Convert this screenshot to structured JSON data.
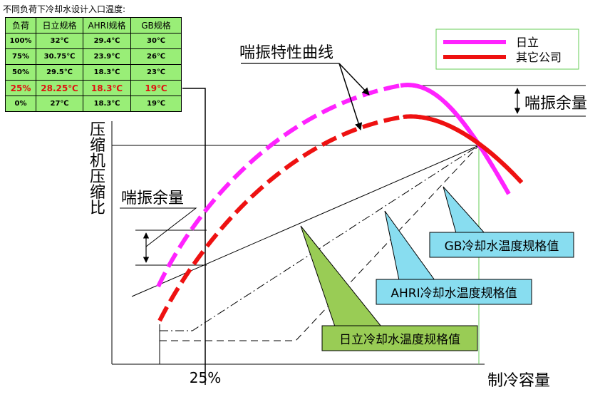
{
  "table": {
    "caption": "不同负荷下冷却水设计入口温度:",
    "headers": [
      "负荷",
      "日立规格",
      "AHRI规格",
      "GB规格"
    ],
    "rows": [
      [
        "100%",
        "32℃",
        "29.4℃",
        "30℃"
      ],
      [
        "75%",
        "30.75℃",
        "23.9℃",
        "26℃"
      ],
      [
        "50%",
        "29.5℃",
        "18.3℃",
        "23℃"
      ],
      [
        "25%",
        "28.25℃",
        "18.3℃",
        "19℃"
      ],
      [
        "0%",
        "27℃",
        "18.3℃",
        "19℃"
      ]
    ],
    "highlight_row": 3,
    "background": "#99ee77",
    "highlight_color": "#e01010"
  },
  "legend": {
    "items": [
      {
        "label": "日立",
        "color": "#ff22ff"
      },
      {
        "label": "其它公司",
        "color": "#ee1111"
      }
    ]
  },
  "labels": {
    "surge_curve": "喘振特性曲线",
    "surge_margin_right": "喘振余量",
    "surge_margin_left": "喘振余量",
    "y_axis": "压缩机压缩比",
    "x_axis": "制冷容量",
    "x_tick_25": "25%"
  },
  "callouts": [
    {
      "label": "GB冷却水温度规格值",
      "color": "#88ddf0"
    },
    {
      "label": "AHRI冷却水温度规格值",
      "color": "#88ddf0"
    },
    {
      "label": "日立冷却水温度规格值",
      "color": "#99cc55"
    }
  ]
}
